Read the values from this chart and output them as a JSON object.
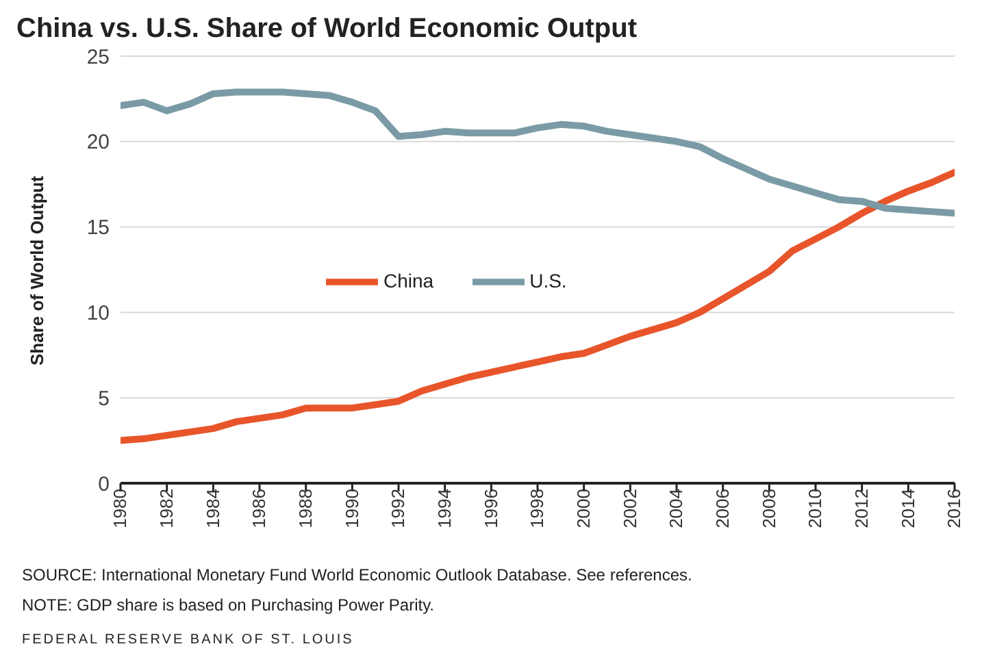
{
  "chart_data": {
    "type": "line",
    "title": "China vs. U.S. Share of World Economic Output",
    "ylabel": "Share of World Output",
    "x": [
      1980,
      1981,
      1982,
      1983,
      1984,
      1985,
      1986,
      1987,
      1988,
      1989,
      1990,
      1991,
      1992,
      1993,
      1994,
      1995,
      1996,
      1997,
      1998,
      1999,
      2000,
      2001,
      2002,
      2003,
      2004,
      2005,
      2006,
      2007,
      2008,
      2009,
      2010,
      2011,
      2012,
      2013,
      2014,
      2015,
      2016
    ],
    "series": [
      {
        "name": "China",
        "color": "#e8552a",
        "values": [
          2.5,
          2.6,
          2.8,
          3.0,
          3.2,
          3.6,
          3.8,
          4.0,
          4.4,
          4.4,
          4.4,
          4.6,
          4.8,
          5.4,
          5.8,
          6.2,
          6.5,
          6.8,
          7.1,
          7.4,
          7.6,
          8.1,
          8.6,
          9.0,
          9.4,
          10.0,
          10.8,
          11.6,
          12.4,
          13.6,
          14.3,
          15.0,
          15.8,
          16.5,
          17.1,
          17.6,
          18.2
        ]
      },
      {
        "name": "U.S.",
        "color": "#7a9ba6",
        "values": [
          22.1,
          22.3,
          21.8,
          22.2,
          22.8,
          22.9,
          22.9,
          22.9,
          22.8,
          22.7,
          22.3,
          21.8,
          20.3,
          20.4,
          20.6,
          20.5,
          20.5,
          20.5,
          20.8,
          21.0,
          20.9,
          20.6,
          20.4,
          20.2,
          20.0,
          19.7,
          19.0,
          18.4,
          17.8,
          17.4,
          17.0,
          16.6,
          16.5,
          16.1,
          16.0,
          15.9,
          15.8
        ]
      }
    ],
    "xlim": [
      1980,
      2016
    ],
    "xticks": [
      1980,
      1982,
      1984,
      1986,
      1988,
      1990,
      1992,
      1994,
      1996,
      1998,
      2000,
      2002,
      2004,
      2006,
      2008,
      2010,
      2012,
      2014,
      2016
    ],
    "ylim": [
      0,
      25
    ],
    "yticks": [
      0,
      5,
      10,
      15,
      20,
      25
    ],
    "grid": "y",
    "legend": "center",
    "marker": "none",
    "line_style": "solid",
    "annotations": [
      "SOURCE: International Monetary Fund World Economic Outlook Database. See references.",
      "NOTE: GDP share is based on Purchasing Power Parity.",
      "FEDERAL RESERVE BANK OF ST. LOUIS"
    ]
  }
}
